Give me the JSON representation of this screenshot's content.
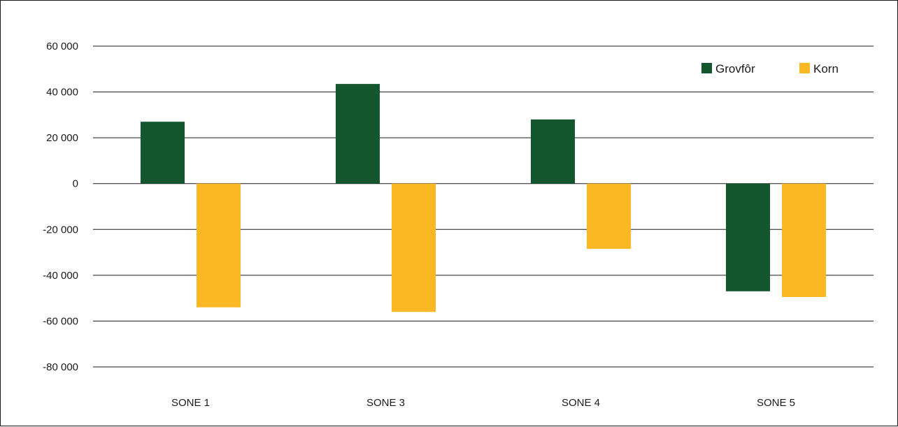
{
  "chart_data": {
    "type": "bar",
    "title": "",
    "xlabel": "",
    "ylabel": "",
    "categories": [
      "SONE 1",
      "SONE 3",
      "SONE 4",
      "SONE 5"
    ],
    "series": [
      {
        "name": "Grovfôr",
        "color": "#14572e",
        "values": [
          27000,
          43500,
          28000,
          -47000
        ]
      },
      {
        "name": "Korn",
        "color": "#fbb825",
        "values": [
          -54000,
          -56000,
          -28500,
          -49500
        ]
      }
    ],
    "ylim": [
      -80000,
      60000
    ],
    "yticks": [
      60000,
      40000,
      20000,
      0,
      -20000,
      -40000,
      -60000,
      -80000
    ],
    "ytick_labels": [
      "60 000",
      "40 000",
      "20 000",
      "0",
      "-20 000",
      "-40 000",
      "-60 000",
      "-80 000"
    ],
    "grid": true,
    "legend_position": "top-right"
  }
}
